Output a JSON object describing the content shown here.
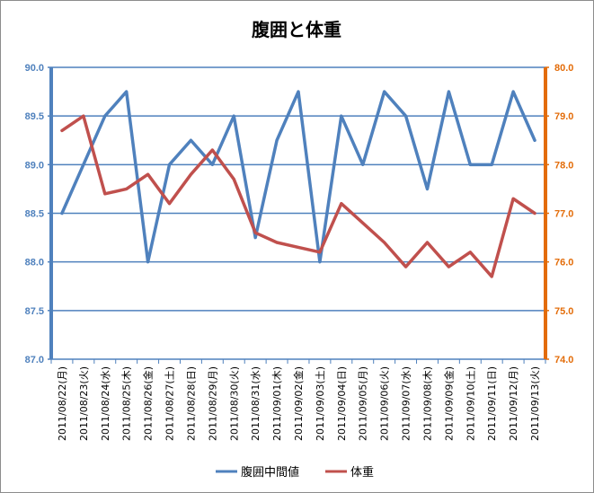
{
  "chart_data": {
    "type": "line",
    "title": "腹囲と体重",
    "x": [
      "2011/08/22(月)",
      "2011/08/23(火)",
      "2011/08/24(水)",
      "2011/08/25(木)",
      "2011/08/26(金)",
      "2011/08/27(土)",
      "2011/08/28(日)",
      "2011/08/29(月)",
      "2011/08/30(火)",
      "2011/08/31(水)",
      "2011/09/01(木)",
      "2011/09/02(金)",
      "2011/09/03(土)",
      "2011/09/04(日)",
      "2011/09/05(月)",
      "2011/09/06(火)",
      "2011/09/07(水)",
      "2011/09/08(木)",
      "2011/09/09(金)",
      "2011/09/10(土)",
      "2011/09/11(日)",
      "2011/09/12(月)",
      "2011/09/13(火)"
    ],
    "y_left": {
      "ylim": [
        87.0,
        90.0
      ],
      "ticks": [
        "87.0",
        "87.5",
        "88.0",
        "88.5",
        "89.0",
        "89.5",
        "90.0"
      ],
      "color": "#4f81bd"
    },
    "y_right": {
      "ylim": [
        74.0,
        80.0
      ],
      "ticks": [
        "74.0",
        "75.0",
        "76.0",
        "77.0",
        "78.0",
        "79.0",
        "80.0"
      ],
      "color": "#e36c09"
    },
    "series": [
      {
        "name": "腹囲中間値",
        "axis": "left",
        "color": "#4f81bd",
        "values": [
          88.5,
          89.0,
          89.5,
          89.75,
          88.0,
          89.0,
          89.25,
          89.0,
          89.5,
          88.25,
          89.25,
          89.75,
          88.0,
          89.5,
          89.0,
          89.75,
          89.5,
          88.75,
          89.75,
          89.0,
          89.0,
          89.75,
          89.25
        ]
      },
      {
        "name": "体重",
        "axis": "right",
        "color": "#c0504d",
        "values": [
          78.7,
          79.0,
          77.4,
          77.5,
          77.8,
          77.2,
          77.8,
          78.3,
          77.7,
          76.6,
          76.4,
          76.3,
          76.2,
          77.2,
          76.8,
          76.4,
          75.9,
          76.4,
          75.9,
          76.2,
          75.7,
          77.3,
          77.0
        ]
      }
    ],
    "gridlines": "horizontal",
    "legend_position": "bottom"
  }
}
